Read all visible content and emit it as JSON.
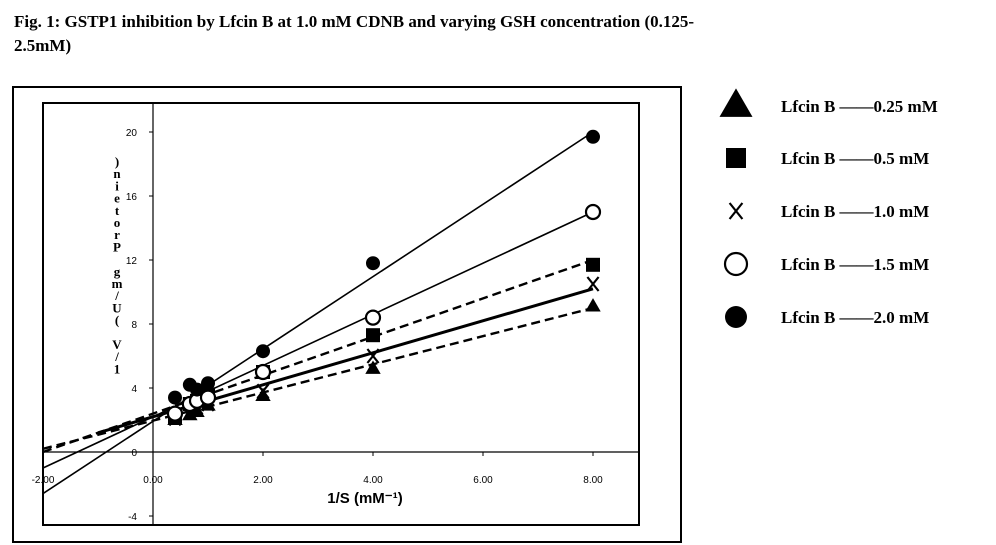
{
  "figure": {
    "title": "Fig. 1: GSTP1 inhibition by Lfcin B at 1.0 mM CDNB and varying GSH concentration (0.125-2.5mM)"
  },
  "chart_data": {
    "type": "scatter",
    "title": "Fig. 1: GSTP1 inhibition by Lfcin B at 1.0 mM CDNB and varying GSH concentration (0.125-2.5mM)",
    "xlabel": "1/S (mM⁻¹)",
    "ylabel": "1/V (U/mg Protein)",
    "xlim": [
      -2,
      8.5
    ],
    "ylim": [
      -4,
      21
    ],
    "x_ticks": [
      "-2.00",
      "0.00",
      "2.00",
      "4.00",
      "6.00",
      "8.00"
    ],
    "y_ticks": [
      "-4",
      "0",
      "4",
      "8",
      "12",
      "16",
      "20"
    ],
    "grid": false,
    "legend_position": "right",
    "series": [
      {
        "name": "Lfcin B ——0.25 mM",
        "marker": "triangle",
        "line_style": "dashed",
        "x": [
          0.4,
          0.67,
          0.8,
          1.0,
          2.0,
          4.0,
          8.0
        ],
        "y": [
          2.0,
          2.3,
          2.5,
          2.9,
          3.5,
          5.2,
          9.1
        ],
        "fit": {
          "x_start": -2.0,
          "y_start": 0.2,
          "x_end": 8.0,
          "y_end": 9.0
        }
      },
      {
        "name": "Lfcin B ——0.5 mM",
        "marker": "square",
        "line_style": "dashed",
        "x": [
          0.4,
          0.67,
          0.8,
          1.0,
          2.0,
          4.0,
          8.0
        ],
        "y": [
          2.2,
          3.0,
          3.2,
          3.6,
          5.0,
          7.3,
          11.7
        ],
        "fit": {
          "x_start": -2.0,
          "y_start": 0.0,
          "x_end": 8.0,
          "y_end": 12.0
        }
      },
      {
        "name": "Lfcin B ——1.0 mM",
        "marker": "x",
        "line_style": "solid",
        "x": [
          0.4,
          0.67,
          0.8,
          1.0,
          2.0,
          4.0,
          8.0
        ],
        "y": [
          2.1,
          2.5,
          2.8,
          3.0,
          3.8,
          6.0,
          10.5
        ],
        "fit": {
          "x_start": -1.0,
          "y_start": 1.2,
          "x_end": 8.0,
          "y_end": 10.2
        }
      },
      {
        "name": "Lfcin B ——1.5 mM",
        "marker": "circle-open",
        "line_style": "solid",
        "x": [
          0.4,
          0.67,
          0.8,
          1.0,
          2.0,
          4.0,
          8.0
        ],
        "y": [
          2.4,
          3.0,
          3.2,
          3.4,
          5.0,
          8.4,
          15.0
        ],
        "fit": {
          "x_start": -2.0,
          "y_start": -1.0,
          "x_end": 8.0,
          "y_end": 15.0
        }
      },
      {
        "name": "Lfcin B ——2.0 mM",
        "marker": "circle-filled",
        "line_style": "solid",
        "x": [
          0.4,
          0.67,
          0.8,
          1.0,
          2.0,
          4.0,
          8.0
        ],
        "y": [
          3.4,
          4.2,
          3.9,
          4.3,
          6.3,
          11.8,
          19.7
        ],
        "fit": {
          "x_start": -2.0,
          "y_start": -2.6,
          "x_end": 8.0,
          "y_end": 20.0
        }
      }
    ]
  }
}
